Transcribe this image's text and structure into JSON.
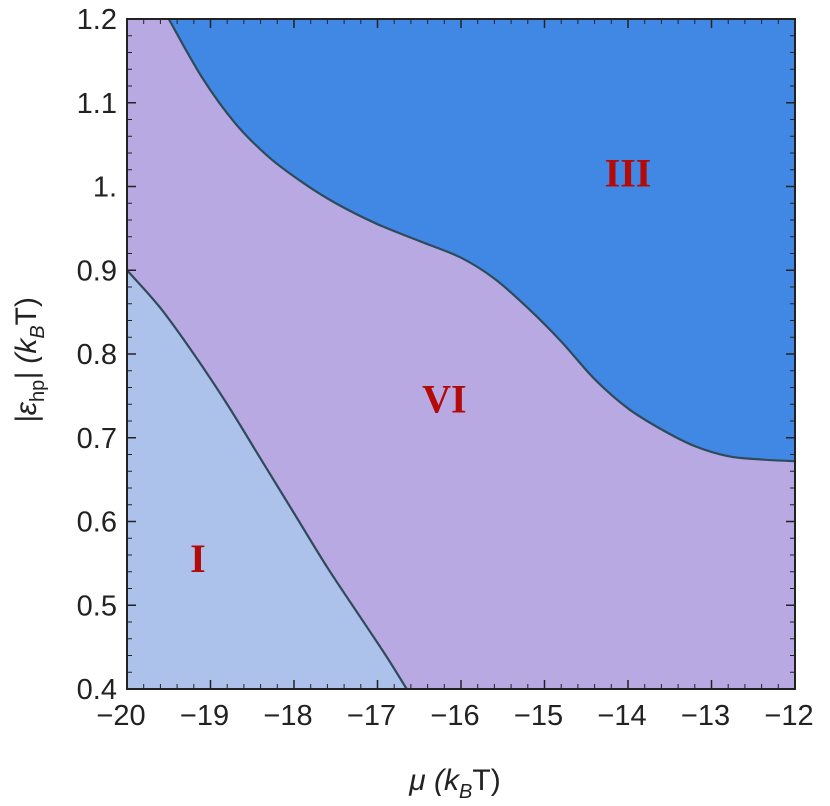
{
  "chart_data": {
    "type": "area",
    "xlim": [
      -20,
      -12
    ],
    "ylim": [
      0.4,
      1.2
    ],
    "x_ticks": [
      -20,
      -19,
      -18,
      -17,
      -16,
      -15,
      -14,
      -13,
      -12
    ],
    "y_ticks": [
      0.4,
      0.5,
      0.6,
      0.7,
      0.8,
      0.9,
      1.0,
      1.1,
      1.2
    ],
    "x_tick_labels": [
      "−20",
      "−19",
      "−18",
      "−17",
      "−16",
      "−15",
      "−14",
      "−13",
      "−12"
    ],
    "y_tick_labels": [
      "0.4",
      "0.5",
      "0.6",
      "0.7",
      "0.8",
      "0.9",
      "1.",
      "1.1",
      "1.2"
    ],
    "xlabel": {
      "main": "μ (k",
      "sub": "B",
      "tail": "T)"
    },
    "ylabel": {
      "main": "|ε",
      "sub": "hp",
      "tail": "| (k",
      "sub2": "B",
      "tail2": "T)"
    },
    "grid": false,
    "colors": {
      "region_I": "#adc2ea",
      "region_VI": "#b9a9e2",
      "region_III": "#4088e4",
      "boundary": "#2f4a5a",
      "label": "#b30a0a"
    },
    "regions": [
      {
        "name": "I",
        "label_at": {
          "x": -19.15,
          "y": 0.54
        }
      },
      {
        "name": "VI",
        "label_at": {
          "x": -16.2,
          "y": 0.73
        }
      },
      {
        "name": "III",
        "label_at": {
          "x": -14.0,
          "y": 1.0
        }
      }
    ],
    "boundaries": [
      {
        "between": [
          "I",
          "VI"
        ],
        "points": [
          [
            -20.0,
            0.9
          ],
          [
            -19.6,
            0.855
          ],
          [
            -19.2,
            0.8
          ],
          [
            -18.8,
            0.74
          ],
          [
            -18.4,
            0.675
          ],
          [
            -18.0,
            0.61
          ],
          [
            -17.6,
            0.545
          ],
          [
            -17.2,
            0.485
          ],
          [
            -16.9,
            0.44
          ],
          [
            -16.65,
            0.4
          ]
        ]
      },
      {
        "between": [
          "VI",
          "III"
        ],
        "points": [
          [
            -19.5,
            1.2
          ],
          [
            -19.1,
            1.13
          ],
          [
            -18.7,
            1.075
          ],
          [
            -18.3,
            1.035
          ],
          [
            -17.9,
            1.005
          ],
          [
            -17.5,
            0.98
          ],
          [
            -17.0,
            0.955
          ],
          [
            -16.5,
            0.935
          ],
          [
            -16.0,
            0.915
          ],
          [
            -15.6,
            0.89
          ],
          [
            -15.2,
            0.855
          ],
          [
            -14.8,
            0.815
          ],
          [
            -14.4,
            0.77
          ],
          [
            -14.0,
            0.735
          ],
          [
            -13.6,
            0.71
          ],
          [
            -13.2,
            0.69
          ],
          [
            -12.8,
            0.678
          ],
          [
            -12.4,
            0.674
          ],
          [
            -12.0,
            0.672
          ]
        ]
      }
    ]
  }
}
